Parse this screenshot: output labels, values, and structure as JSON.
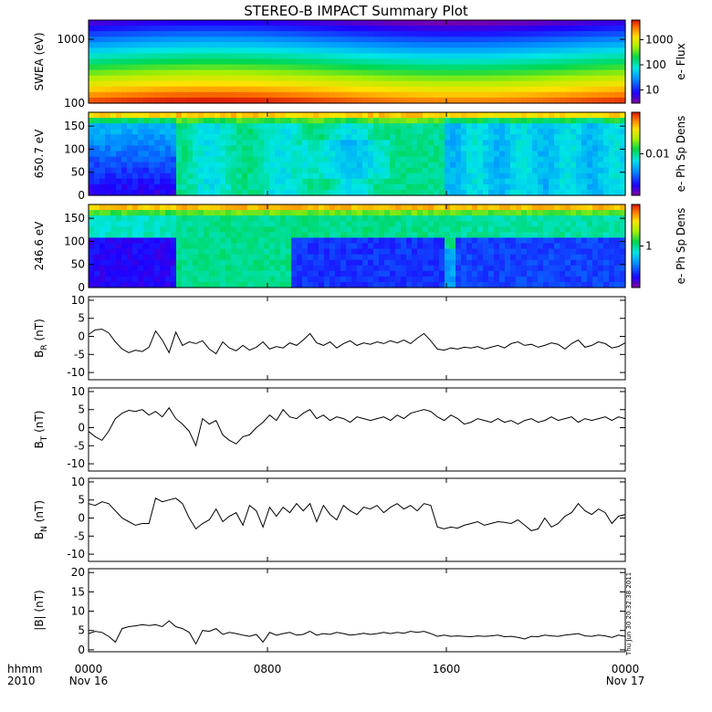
{
  "title": "STEREO-B IMPACT Summary Plot",
  "time_axis": {
    "row1_label": "hhmm",
    "row2_label": "2010",
    "ticks": [
      {
        "hour": 0,
        "label": "0000",
        "date": "Nov 16"
      },
      {
        "hour": 8,
        "label": "0800",
        "date": ""
      },
      {
        "hour": 16,
        "label": "1600",
        "date": ""
      },
      {
        "hour": 24,
        "label": "0000",
        "date": "Nov 17"
      }
    ]
  },
  "side_stamp": "Thu Jun 30 20:32:38 2011",
  "chart_data": [
    {
      "type": "heatmap",
      "ylabel": "SWEA (eV)",
      "yscale": "log",
      "ylim": [
        100,
        2000
      ],
      "yticks": [
        {
          "v": 100,
          "label": "100"
        },
        {
          "v": 1000,
          "label": "1000"
        }
      ],
      "colorbar": {
        "label": "e- Flux",
        "scale": "log",
        "range": [
          3,
          6000
        ],
        "ticks": [
          {
            "v": 10,
            "label": "10"
          },
          {
            "v": 100,
            "label": "100"
          },
          {
            "v": 1000,
            "label": "1000"
          }
        ]
      }
    },
    {
      "type": "heatmap",
      "ylabel": "650.7 eV",
      "ylim": [
        0,
        180
      ],
      "yticks": [
        {
          "v": 0,
          "label": "0"
        },
        {
          "v": 50,
          "label": "50"
        },
        {
          "v": 100,
          "label": "100"
        },
        {
          "v": 150,
          "label": "150"
        }
      ],
      "colorbar": {
        "label": "e- Ph Sp Dens",
        "scale": "log",
        "range": [
          0.001,
          0.1
        ],
        "ticks": [
          {
            "v": 0.01,
            "label": "0.01"
          }
        ]
      }
    },
    {
      "type": "heatmap",
      "ylabel": "246.6 eV",
      "ylim": [
        0,
        180
      ],
      "yticks": [
        {
          "v": 0,
          "label": "0"
        },
        {
          "v": 50,
          "label": "50"
        },
        {
          "v": 100,
          "label": "100"
        },
        {
          "v": 150,
          "label": "150"
        }
      ],
      "colorbar": {
        "label": "e- Ph Sp Dens",
        "scale": "log",
        "range": [
          0.1,
          10
        ],
        "ticks": [
          {
            "v": 1,
            "label": "1"
          }
        ]
      }
    },
    {
      "type": "line",
      "ylabel_main": "B",
      "ylabel_sub": "R",
      "ylabel_unit": "(nT)",
      "ylim": [
        -12,
        11
      ],
      "yticks": [
        {
          "v": -10,
          "label": "-10"
        },
        {
          "v": -5,
          "label": "-5"
        },
        {
          "v": 0,
          "label": "0"
        },
        {
          "v": 5,
          "label": "5"
        },
        {
          "v": 10,
          "label": "10"
        }
      ],
      "x_hours": [
        0,
        0.3,
        0.6,
        0.9,
        1.2,
        1.5,
        1.8,
        2.1,
        2.4,
        2.7,
        3.0,
        3.3,
        3.6,
        3.9,
        4.2,
        4.5,
        4.8,
        5.1,
        5.4,
        5.7,
        6.0,
        6.3,
        6.6,
        6.9,
        7.2,
        7.5,
        7.8,
        8.1,
        8.4,
        8.7,
        9.0,
        9.3,
        9.6,
        9.9,
        10.2,
        10.5,
        10.8,
        11.1,
        11.4,
        11.7,
        12.0,
        12.3,
        12.6,
        12.9,
        13.2,
        13.5,
        13.8,
        14.1,
        14.4,
        14.7,
        15.0,
        15.3,
        15.6,
        15.9,
        16.2,
        16.5,
        16.8,
        17.1,
        17.4,
        17.7,
        18.0,
        18.3,
        18.6,
        18.9,
        19.2,
        19.5,
        19.8,
        20.1,
        20.4,
        20.7,
        21.0,
        21.3,
        21.6,
        21.9,
        22.2,
        22.5,
        22.8,
        23.1,
        23.4,
        23.7,
        24.0
      ],
      "values": [
        0.5,
        1.8,
        2.0,
        1.0,
        -1.5,
        -3.5,
        -4.5,
        -3.8,
        -4.2,
        -3.0,
        1.5,
        -1.0,
        -4.5,
        1.2,
        -2.5,
        -1.5,
        -2.0,
        -1.2,
        -3.5,
        -4.8,
        -1.5,
        -3.2,
        -4.0,
        -2.5,
        -3.8,
        -3.0,
        -1.5,
        -3.5,
        -2.8,
        -3.2,
        -1.8,
        -2.5,
        -1.0,
        0.8,
        -1.8,
        -2.5,
        -1.5,
        -3.2,
        -2.0,
        -1.2,
        -2.5,
        -1.8,
        -2.2,
        -1.5,
        -2.0,
        -1.2,
        -1.8,
        -1.0,
        -2.0,
        -0.5,
        0.8,
        -1.2,
        -3.5,
        -3.8,
        -3.2,
        -3.5,
        -3.0,
        -3.2,
        -2.8,
        -3.5,
        -3.0,
        -2.5,
        -3.2,
        -2.0,
        -1.5,
        -2.5,
        -2.2,
        -3.0,
        -2.5,
        -1.8,
        -2.2,
        -3.5,
        -2.0,
        -1.0,
        -3.0,
        -2.5,
        -1.5,
        -2.0,
        -3.2,
        -2.8,
        -1.8
      ]
    },
    {
      "type": "line",
      "ylabel_main": "B",
      "ylabel_sub": "T",
      "ylabel_unit": "(nT)",
      "ylim": [
        -12,
        11
      ],
      "yticks": [
        {
          "v": -10,
          "label": "-10"
        },
        {
          "v": -5,
          "label": "-5"
        },
        {
          "v": 0,
          "label": "0"
        },
        {
          "v": 5,
          "label": "5"
        },
        {
          "v": 10,
          "label": "10"
        }
      ],
      "x_hours": [
        0,
        0.3,
        0.6,
        0.9,
        1.2,
        1.5,
        1.8,
        2.1,
        2.4,
        2.7,
        3.0,
        3.3,
        3.6,
        3.9,
        4.2,
        4.5,
        4.8,
        5.1,
        5.4,
        5.7,
        6.0,
        6.3,
        6.6,
        6.9,
        7.2,
        7.5,
        7.8,
        8.1,
        8.4,
        8.7,
        9.0,
        9.3,
        9.6,
        9.9,
        10.2,
        10.5,
        10.8,
        11.1,
        11.4,
        11.7,
        12.0,
        12.3,
        12.6,
        12.9,
        13.2,
        13.5,
        13.8,
        14.1,
        14.4,
        14.7,
        15.0,
        15.3,
        15.6,
        15.9,
        16.2,
        16.5,
        16.8,
        17.1,
        17.4,
        17.7,
        18.0,
        18.3,
        18.6,
        18.9,
        19.2,
        19.5,
        19.8,
        20.1,
        20.4,
        20.7,
        21.0,
        21.3,
        21.6,
        21.9,
        22.2,
        22.5,
        22.8,
        23.1,
        23.4,
        23.7,
        24.0
      ],
      "values": [
        -1.0,
        -2.5,
        -3.5,
        -1.0,
        2.5,
        4.0,
        4.8,
        4.5,
        5.0,
        3.5,
        4.5,
        3.0,
        5.5,
        2.5,
        1.0,
        -1.0,
        -5.0,
        2.5,
        1.0,
        2.0,
        -2.0,
        -3.5,
        -4.5,
        -2.5,
        -2.0,
        0.0,
        1.5,
        3.5,
        2.0,
        5.0,
        3.0,
        2.5,
        4.0,
        5.0,
        2.5,
        3.5,
        2.0,
        3.0,
        2.5,
        1.5,
        3.0,
        2.5,
        2.0,
        2.5,
        3.0,
        2.0,
        3.5,
        2.5,
        4.0,
        4.5,
        5.0,
        4.5,
        3.0,
        2.0,
        3.5,
        2.5,
        1.0,
        1.5,
        2.5,
        2.0,
        1.5,
        2.5,
        1.5,
        2.0,
        1.0,
        2.0,
        2.5,
        1.5,
        2.0,
        3.0,
        2.0,
        2.5,
        3.0,
        1.5,
        2.5,
        2.0,
        2.5,
        3.0,
        2.0,
        3.0,
        2.5
      ]
    },
    {
      "type": "line",
      "ylabel_main": "B",
      "ylabel_sub": "N",
      "ylabel_unit": "(nT)",
      "ylim": [
        -12,
        11
      ],
      "yticks": [
        {
          "v": -10,
          "label": "-10"
        },
        {
          "v": -5,
          "label": "-5"
        },
        {
          "v": 0,
          "label": "0"
        },
        {
          "v": 5,
          "label": "5"
        },
        {
          "v": 10,
          "label": "10"
        }
      ],
      "x_hours": [
        0,
        0.3,
        0.6,
        0.9,
        1.2,
        1.5,
        1.8,
        2.1,
        2.4,
        2.7,
        3.0,
        3.3,
        3.6,
        3.9,
        4.2,
        4.5,
        4.8,
        5.1,
        5.4,
        5.7,
        6.0,
        6.3,
        6.6,
        6.9,
        7.2,
        7.5,
        7.8,
        8.1,
        8.4,
        8.7,
        9.0,
        9.3,
        9.6,
        9.9,
        10.2,
        10.5,
        10.8,
        11.1,
        11.4,
        11.7,
        12.0,
        12.3,
        12.6,
        12.9,
        13.2,
        13.5,
        13.8,
        14.1,
        14.4,
        14.7,
        15.0,
        15.3,
        15.6,
        15.9,
        16.2,
        16.5,
        16.8,
        17.1,
        17.4,
        17.7,
        18.0,
        18.3,
        18.6,
        18.9,
        19.2,
        19.5,
        19.8,
        20.1,
        20.4,
        20.7,
        21.0,
        21.3,
        21.6,
        21.9,
        22.2,
        22.5,
        22.8,
        23.1,
        23.4,
        23.7,
        24.0
      ],
      "values": [
        4.0,
        3.5,
        4.5,
        4.0,
        2.0,
        0.0,
        -1.0,
        -2.0,
        -1.5,
        -1.5,
        5.5,
        4.5,
        5.0,
        5.5,
        4.0,
        0.0,
        -3.0,
        -1.5,
        -0.5,
        2.5,
        -1.0,
        0.5,
        1.5,
        -2.0,
        3.5,
        2.0,
        -2.5,
        3.0,
        0.5,
        3.0,
        1.5,
        4.0,
        2.0,
        4.0,
        -1.0,
        3.5,
        1.0,
        -0.5,
        3.5,
        2.0,
        1.0,
        3.0,
        2.5,
        3.5,
        1.5,
        3.0,
        4.0,
        2.5,
        3.5,
        2.0,
        4.0,
        3.5,
        -2.5,
        -3.0,
        -2.5,
        -2.8,
        -2.0,
        -1.5,
        -1.0,
        -2.0,
        -1.5,
        -1.0,
        -1.2,
        -1.5,
        -0.5,
        -2.0,
        -3.5,
        -3.0,
        0.0,
        -2.5,
        -1.5,
        0.5,
        1.5,
        4.0,
        2.0,
        1.0,
        2.5,
        1.5,
        -1.5,
        0.5,
        1.0
      ]
    },
    {
      "type": "line",
      "ylabel_main": "|B|",
      "ylabel_sub": "",
      "ylabel_unit": "(nT)",
      "ylim": [
        -0.5,
        21
      ],
      "yticks": [
        {
          "v": 0,
          "label": "0"
        },
        {
          "v": 5,
          "label": "5"
        },
        {
          "v": 10,
          "label": "10"
        },
        {
          "v": 15,
          "label": "15"
        },
        {
          "v": 20,
          "label": "20"
        }
      ],
      "x_hours": [
        0,
        0.3,
        0.6,
        0.9,
        1.2,
        1.5,
        1.8,
        2.1,
        2.4,
        2.7,
        3.0,
        3.3,
        3.6,
        3.9,
        4.2,
        4.5,
        4.8,
        5.1,
        5.4,
        5.7,
        6.0,
        6.3,
        6.6,
        6.9,
        7.2,
        7.5,
        7.8,
        8.1,
        8.4,
        8.7,
        9.0,
        9.3,
        9.6,
        9.9,
        10.2,
        10.5,
        10.8,
        11.1,
        11.4,
        11.7,
        12.0,
        12.3,
        12.6,
        12.9,
        13.2,
        13.5,
        13.8,
        14.1,
        14.4,
        14.7,
        15.0,
        15.3,
        15.6,
        15.9,
        16.2,
        16.5,
        16.8,
        17.1,
        17.4,
        17.7,
        18.0,
        18.3,
        18.6,
        18.9,
        19.2,
        19.5,
        19.8,
        20.1,
        20.4,
        20.7,
        21.0,
        21.3,
        21.6,
        21.9,
        22.2,
        22.5,
        22.8,
        23.1,
        23.4,
        23.7,
        24.0
      ],
      "values": [
        4.2,
        4.8,
        4.5,
        3.5,
        2.0,
        5.5,
        6.0,
        6.2,
        6.5,
        6.3,
        6.5,
        6.0,
        7.5,
        6.0,
        5.5,
        4.5,
        1.5,
        5.0,
        4.8,
        5.5,
        4.0,
        4.5,
        4.2,
        3.8,
        3.5,
        4.0,
        2.0,
        4.5,
        3.8,
        4.2,
        4.5,
        3.8,
        4.0,
        4.8,
        3.8,
        4.2,
        4.0,
        4.5,
        4.2,
        3.8,
        4.0,
        4.3,
        4.0,
        4.2,
        4.5,
        4.2,
        4.5,
        4.3,
        4.8,
        4.5,
        4.8,
        4.2,
        3.5,
        3.8,
        3.5,
        3.6,
        3.5,
        3.4,
        3.6,
        3.5,
        3.6,
        3.8,
        3.4,
        3.5,
        3.2,
        2.8,
        3.5,
        3.4,
        3.8,
        3.6,
        3.5,
        3.8,
        4.0,
        4.2,
        3.6,
        3.5,
        3.8,
        3.6,
        3.2,
        3.8,
        3.5
      ]
    }
  ]
}
